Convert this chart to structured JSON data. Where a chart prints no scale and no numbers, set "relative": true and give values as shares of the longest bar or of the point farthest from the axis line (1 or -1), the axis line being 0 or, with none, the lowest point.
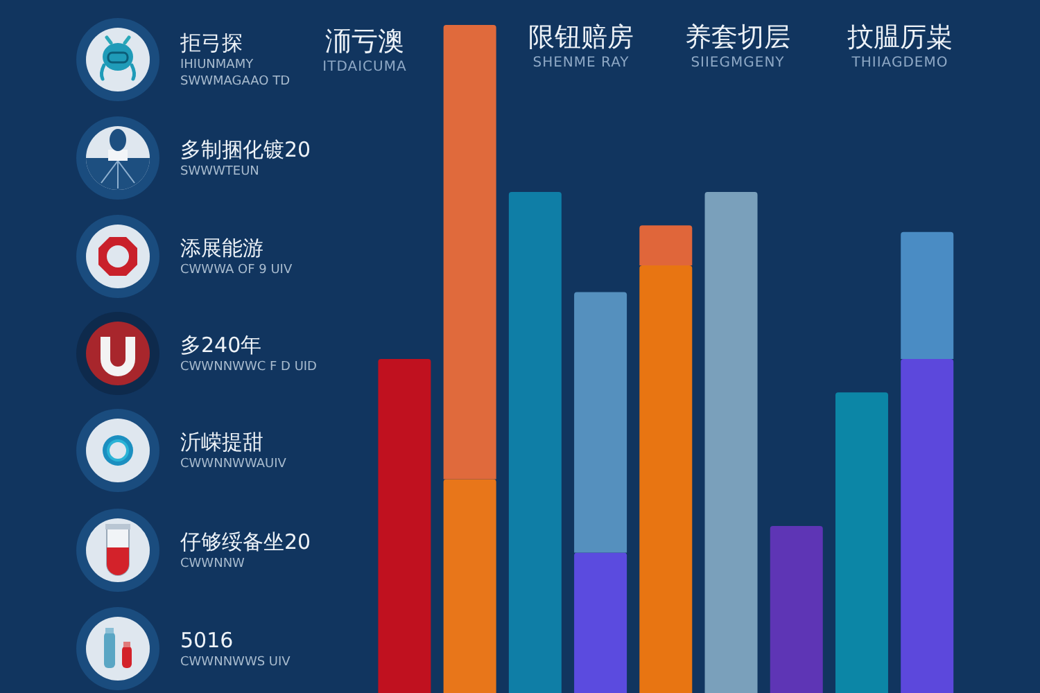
{
  "chart_data": [
    {
      "type": "other",
      "annotations": [
        "拒弓探\nIHIUNMAMY\nSWWMAGAAO TD",
        "多制捆化镀20\nSWWWTEUN",
        "添展能游\nCWWWA OF 9 UIV",
        "多240年\nCWWNNWWC F D UID",
        "沂嵘提甜\nCWWNNWWAUIV",
        "仔够绥备坐20\nCWWNNW",
        "5016\nCWWNNWWS UIV"
      ]
    },
    {
      "type": "bar",
      "relative": true,
      "stacked": true,
      "categories": [
        null,
        null,
        null,
        null,
        null,
        null,
        null,
        null,
        null
      ],
      "series": [
        {
          "colors": [
            "#c0111f",
            "#e8761a",
            "#0f7ea6",
            "#5b4bdf",
            "#e87512",
            "#7aa0bb",
            "#5e35b5",
            "#0c86a6",
            "#5c48dc"
          ],
          "values": [
            0.5,
            0.32,
            0.75,
            0.21,
            0.64,
            0.75,
            0.25,
            0.45,
            0.5
          ]
        },
        {
          "colors": [
            null,
            "#e06a3c",
            null,
            "#5590be",
            "#e0663a",
            null,
            null,
            null,
            "#4a8cc4"
          ],
          "values": [
            null,
            0.68,
            null,
            0.39,
            0.06,
            null,
            null,
            null,
            0.19
          ]
        }
      ],
      "annotations": [
        "洏亏澳\nITDAICUMA",
        "限钮赔房\nSHENME RAY",
        "养套切层\nSIIEGMGENY",
        "抆腽厉粜\nTHIIAGDEMO"
      ]
    }
  ]
}
